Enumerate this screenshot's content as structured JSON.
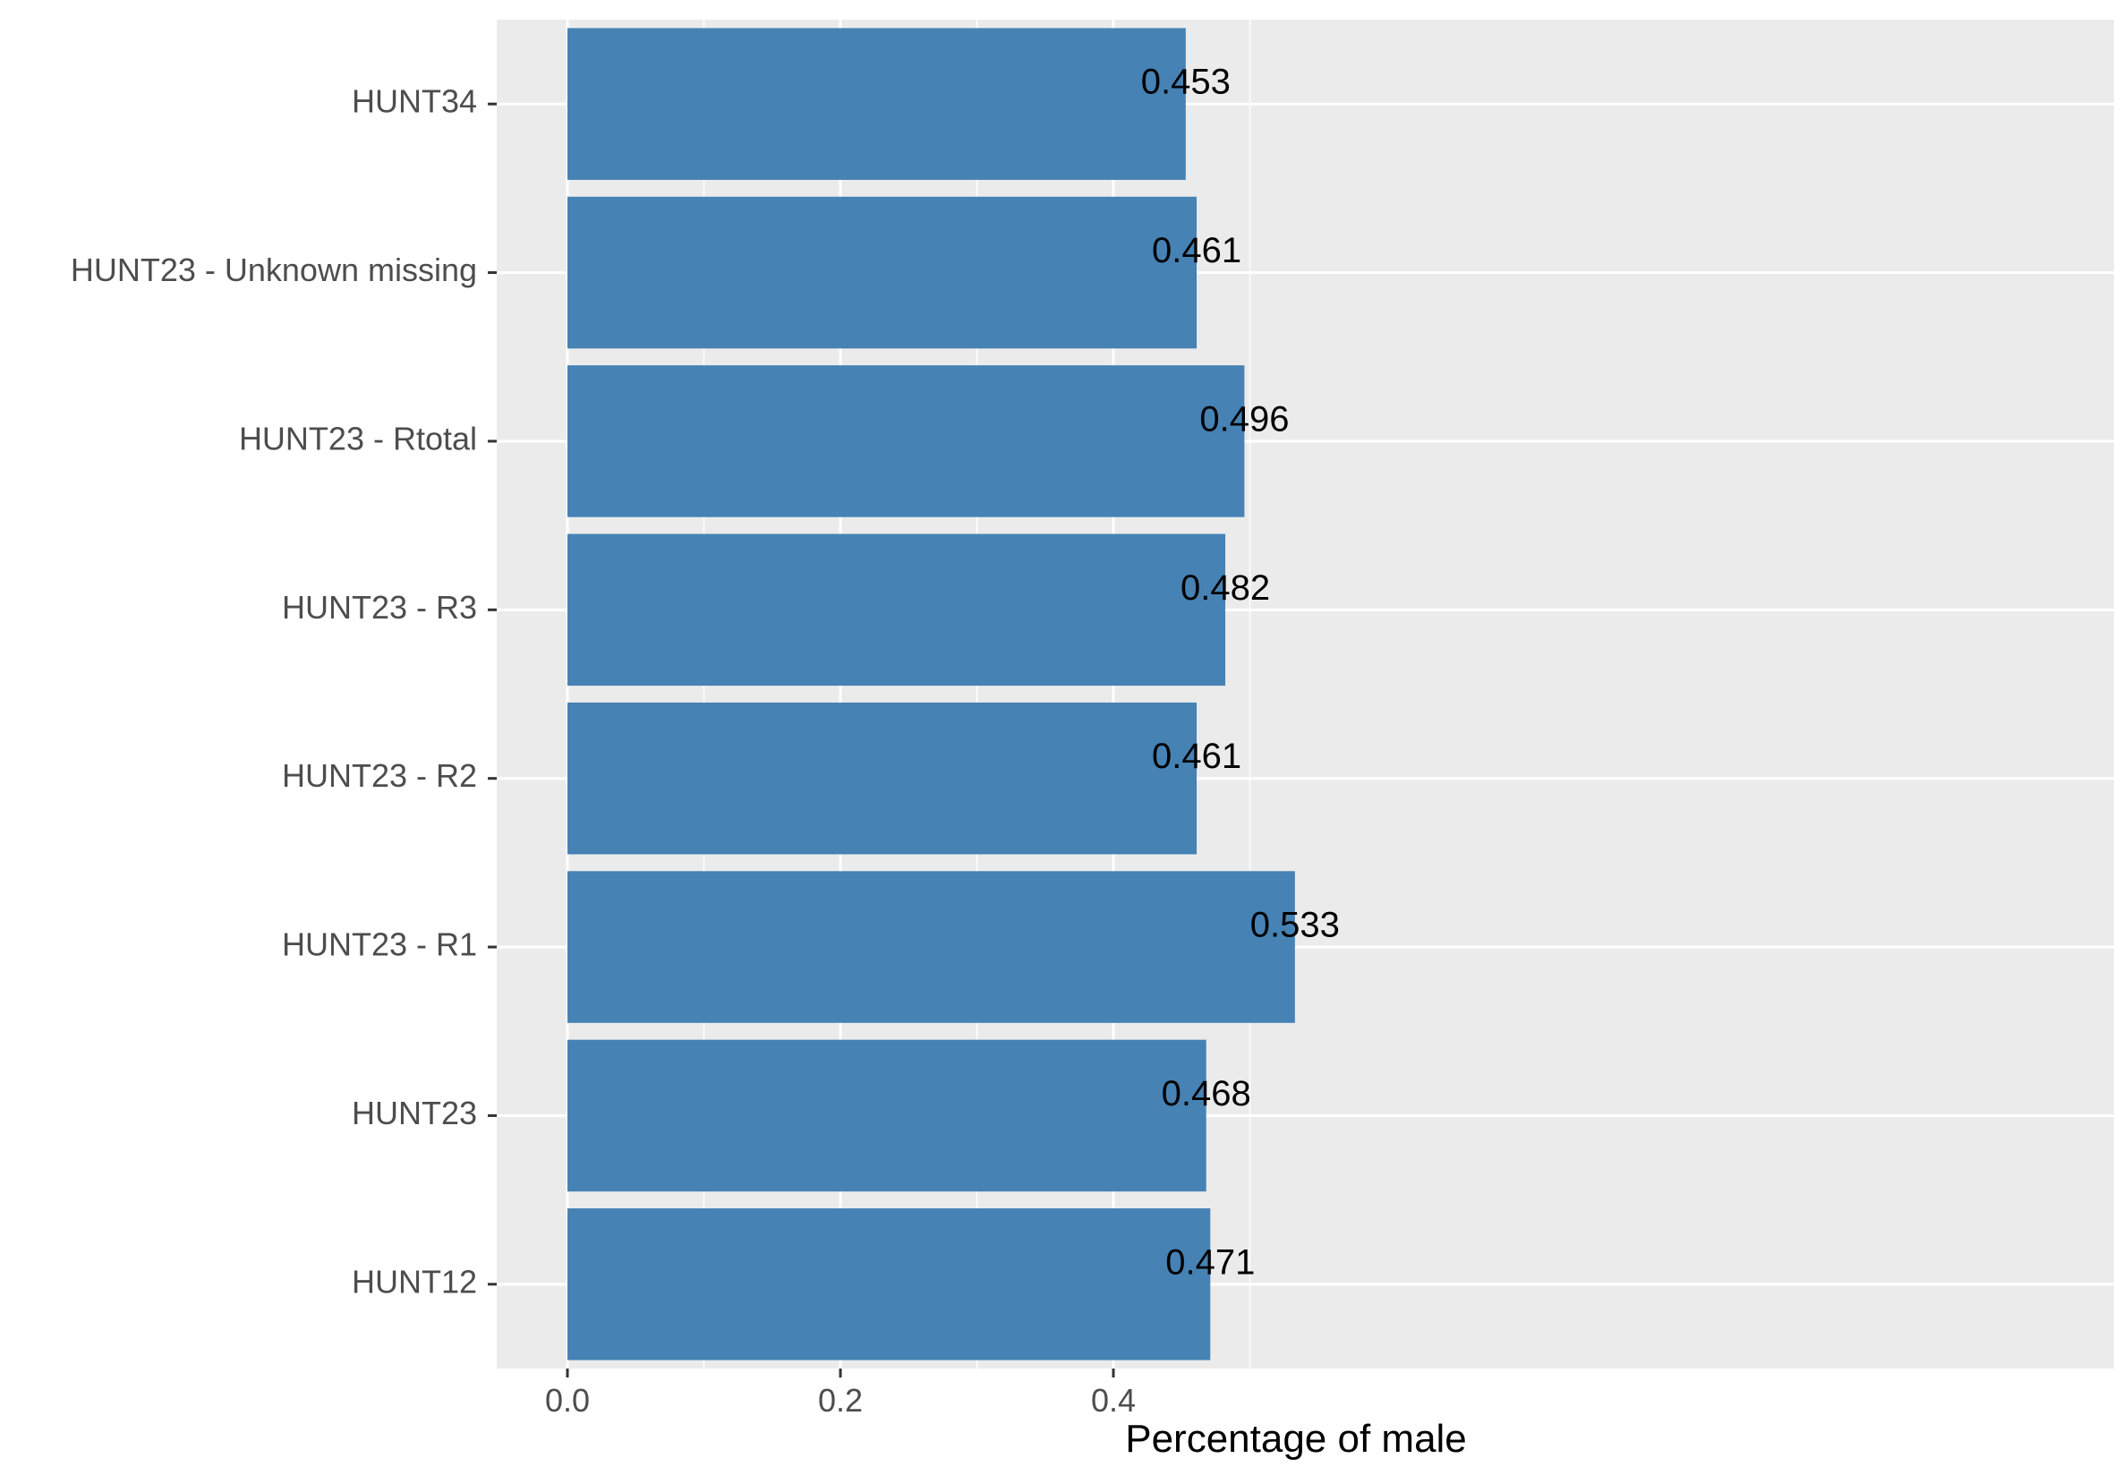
{
  "chart_data": {
    "type": "bar",
    "orientation": "horizontal",
    "categories": [
      "HUNT34",
      "HUNT23 - Unknown missing",
      "HUNT23 - Rtotal",
      "HUNT23 - R3",
      "HUNT23 - R2",
      "HUNT23 - R1",
      "HUNT23",
      "HUNT12"
    ],
    "values": [
      0.453,
      0.461,
      0.496,
      0.482,
      0.461,
      0.533,
      0.468,
      0.471
    ],
    "data_labels": [
      "0.453",
      "0.461",
      "0.496",
      "0.482",
      "0.461",
      "0.533",
      "0.468",
      "0.471"
    ],
    "title": "",
    "xlabel": "Percentage of male",
    "ylabel": "",
    "xlim": [
      -0.026,
      0.56
    ],
    "x_ticks": [
      {
        "value": 0.0,
        "label": "0.0"
      },
      {
        "value": 0.2,
        "label": "0.2"
      },
      {
        "value": 0.4,
        "label": "0.4"
      }
    ],
    "x_minor_grid": [
      0.1,
      0.3,
      0.5
    ],
    "grid": true,
    "legend": "none",
    "colors": {
      "bar": "#4682b4",
      "panel_background": "#ebebeb",
      "grid": "#ffffff",
      "tick_text": "#4d4d4d",
      "tick_mark": "#333333",
      "label_text": "#000000"
    }
  }
}
